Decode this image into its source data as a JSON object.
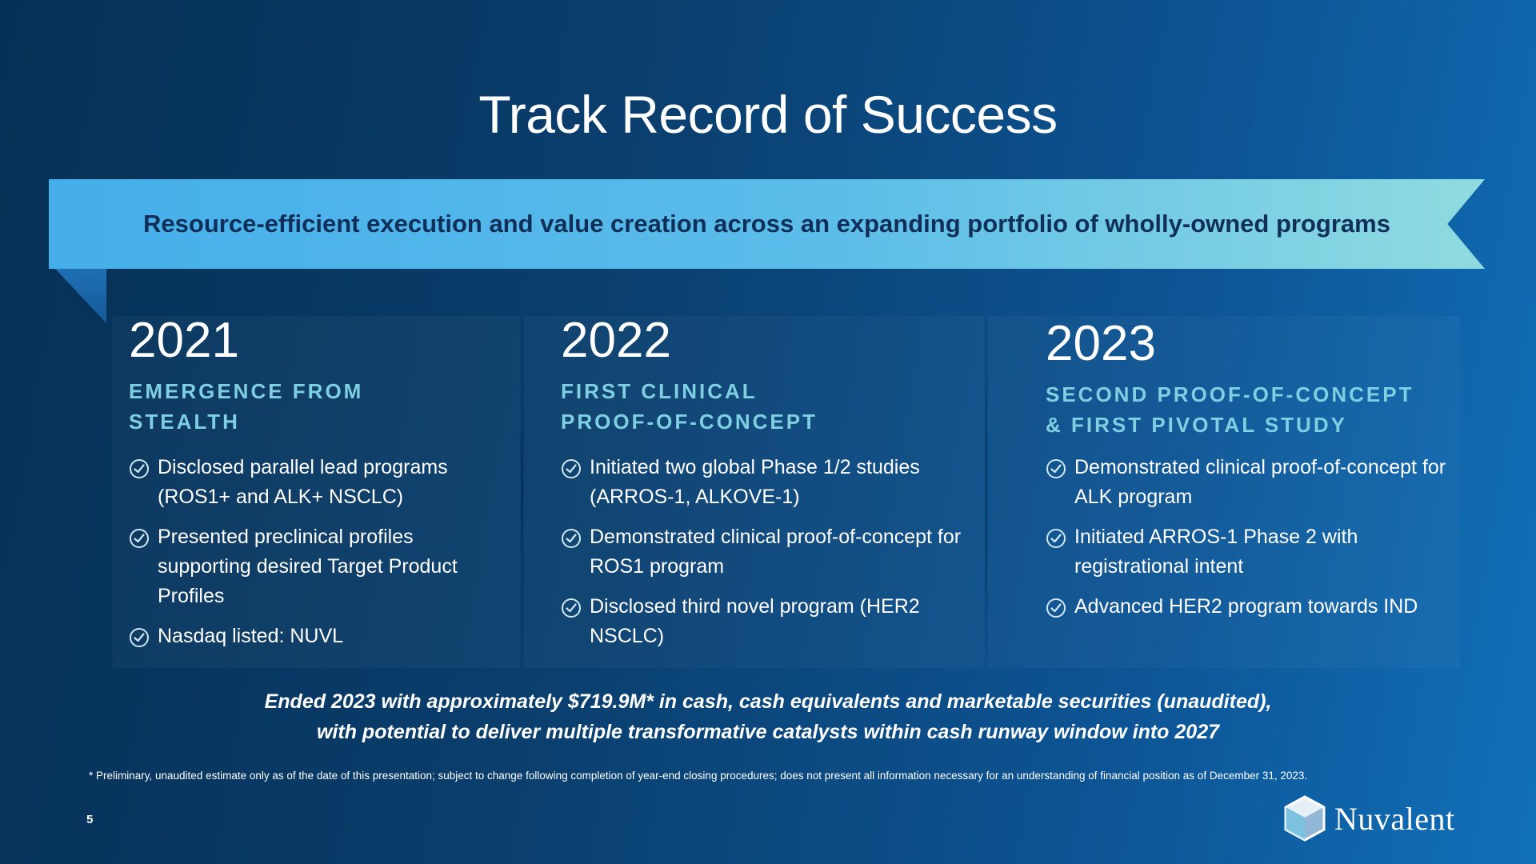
{
  "slide": {
    "title": "Track Record of Success",
    "banner": "Resource-efficient execution and value creation across an expanding portfolio of wholly-owned programs",
    "summary_line1": "Ended 2023 with approximately $719.9M* in cash, cash equivalents and marketable securities (unaudited),",
    "summary_line2": "with potential to deliver multiple transformative catalysts within cash runway window into 2027",
    "footnote": "* Preliminary, unaudited estimate only as of the date of this presentation; subject to change following completion of year-end closing procedures; does not present all information necessary for an understanding of financial position as of December 31, 2023.",
    "page_number": "5",
    "logo_text": "Nuvalent"
  },
  "columns": [
    {
      "year": "2021",
      "subtitle_line1": "EMERGENCE FROM",
      "subtitle_line2": "STEALTH",
      "items": [
        "Disclosed parallel lead programs (ROS1+ and ALK+ NSCLC)",
        "Presented preclinical profiles supporting desired Target Product Profiles",
        "Nasdaq listed: NUVL"
      ]
    },
    {
      "year": "2022",
      "subtitle_line1": "FIRST CLINICAL",
      "subtitle_line2": "PROOF-OF-CONCEPT",
      "items": [
        "Initiated two global Phase 1/2 studies (ARROS-1, ALKOVE-1)",
        "Demonstrated clinical proof-of-concept for ROS1 program",
        "Disclosed third novel program (HER2 NSCLC)"
      ]
    },
    {
      "year": "2023",
      "subtitle_line1": "SECOND PROOF-OF-CONCEPT",
      "subtitle_line2": "& FIRST PIVOTAL STUDY",
      "items": [
        "Demonstrated clinical proof-of-concept for ALK program",
        "Initiated ARROS-1 Phase 2 with registrational intent",
        "Advanced HER2 program towards IND"
      ]
    }
  ],
  "icons": {
    "check": "check-circle-icon",
    "logo": "nuvalent-logo-icon"
  },
  "colors": {
    "accent_subtitle": "#7fcfe3",
    "banner_text": "#0f2f58",
    "banner_start": "#45aeea",
    "banner_end": "#8fdbe0"
  }
}
